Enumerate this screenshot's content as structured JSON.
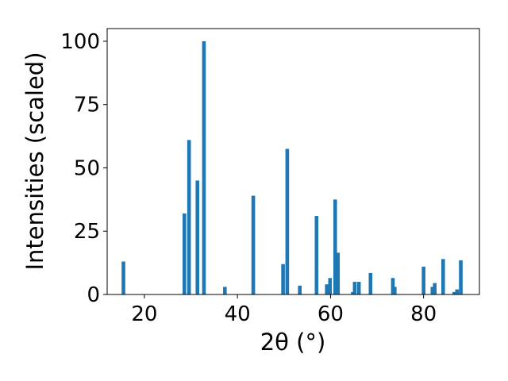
{
  "chart_data": {
    "type": "bar",
    "xlabel": "2θ (°)",
    "ylabel": "Intensities (scaled)",
    "xlim": [
      12,
      92
    ],
    "ylim": [
      0,
      105
    ],
    "x_ticks": [
      20,
      40,
      60,
      80
    ],
    "y_ticks": [
      0,
      25,
      50,
      75,
      100
    ],
    "grid": false,
    "bar_color": "#1f77b4",
    "series": [
      {
        "x": [
          15.5,
          28.6,
          29.6,
          31.4,
          32.8,
          37.3,
          43.4,
          49.8,
          50.7,
          53.4,
          57.0,
          59.2,
          59.9,
          61.0,
          61.6,
          64.8,
          65.2,
          66.1,
          68.6,
          73.4,
          73.8,
          80.0,
          81.9,
          82.4,
          84.2,
          86.6,
          87.2,
          88.0
        ],
        "values": [
          13,
          32,
          61,
          45,
          100,
          3,
          39,
          12,
          57.5,
          3.5,
          31,
          4,
          6.5,
          37.5,
          16.5,
          1,
          5,
          5,
          8.5,
          6.5,
          3,
          11,
          3,
          4.5,
          14,
          1,
          2,
          13.5
        ]
      }
    ]
  }
}
